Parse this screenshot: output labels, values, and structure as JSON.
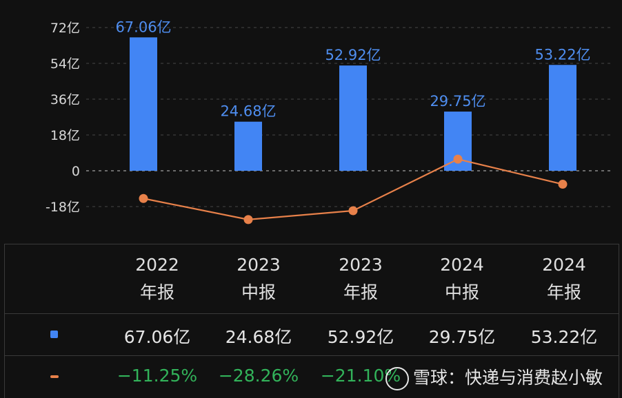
{
  "chart_data": {
    "type": "bar",
    "categories": [
      "2022 年报",
      "2023 中报",
      "2023 年报",
      "2024 中报",
      "2024 年报"
    ],
    "series": [
      {
        "values": [
          67.06,
          24.68,
          52.92,
          29.75,
          53.22
        ],
        "labels": [
          "67.06亿",
          "24.68亿",
          "52.92亿",
          "29.75亿",
          "53.22亿"
        ],
        "color": "#4285f4",
        "kind": "bar"
      },
      {
        "values": [
          -11.25,
          -28.26,
          -21.1,
          20.49,
          0.25
        ],
        "color": "#e8814a",
        "kind": "line",
        "note_axis": "secondary"
      }
    ],
    "yticks": [
      "72亿",
      "54亿",
      "36亿",
      "18亿",
      "0",
      "-18亿"
    ],
    "ytick_values": [
      72,
      54,
      36,
      18,
      0,
      -18
    ],
    "ylim": [
      -18,
      72
    ],
    "grid": true
  },
  "table": {
    "headers": [
      {
        "line1": "2022",
        "line2": "年报"
      },
      {
        "line1": "2023",
        "line2": "中报"
      },
      {
        "line1": "2023",
        "line2": "年报"
      },
      {
        "line1": "2024",
        "line2": "中报"
      },
      {
        "line1": "2024",
        "line2": "年报"
      }
    ],
    "row_values": [
      "67.06亿",
      "24.68亿",
      "52.92亿",
      "29.75亿",
      "53.22亿"
    ],
    "row_pcts": [
      "−11.25%",
      "−28.26%",
      "−21.10%",
      "",
      ""
    ],
    "bar_legend_color": "#4285f4",
    "line_legend_color": "#e8814a"
  },
  "watermark": {
    "text": "雪球：快递与消费赵小敏",
    "icon": "xueqiu-logo-icon"
  }
}
